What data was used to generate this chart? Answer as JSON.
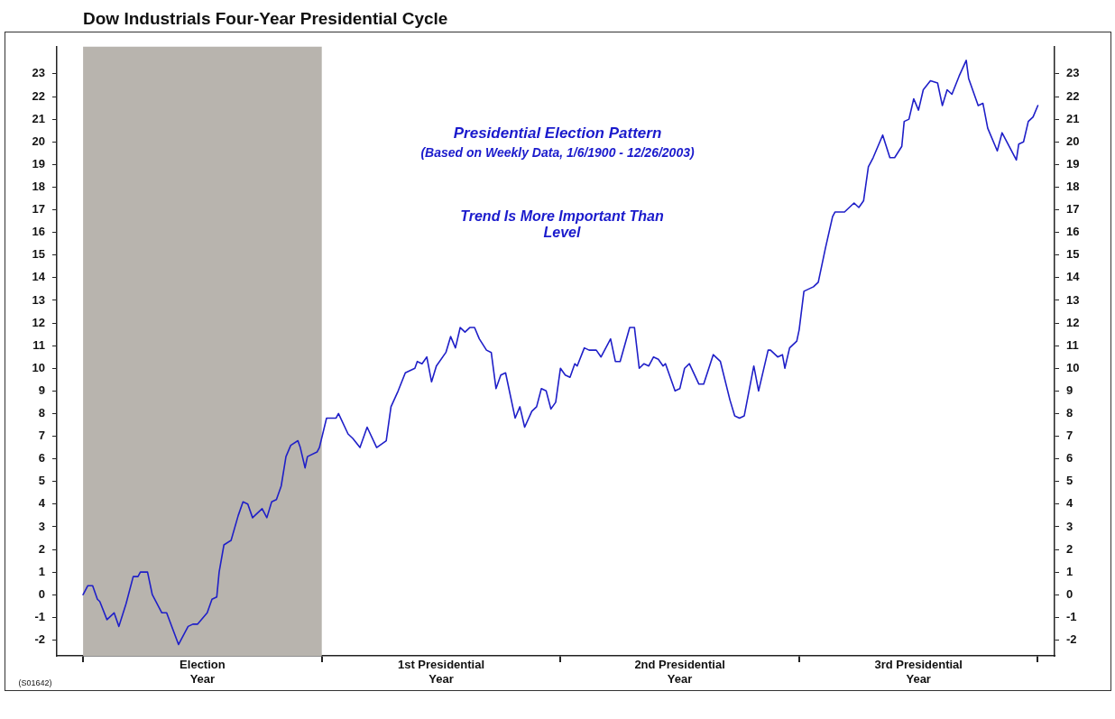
{
  "chart_data": {
    "type": "line",
    "title": "Dow Industrials Four-Year Presidential Cycle",
    "xlim": [
      -0.11,
      4.07
    ],
    "xticks": [
      {
        "value": 0,
        "label": null
      },
      {
        "value": 0.5,
        "label": "Election Year"
      },
      {
        "value": 1,
        "label": null
      },
      {
        "value": 1.5,
        "label": "1st Presidential Year"
      },
      {
        "value": 2,
        "label": null
      },
      {
        "value": 2.5,
        "label": "2nd Presidential Year"
      },
      {
        "value": 3,
        "label": null
      },
      {
        "value": 3.5,
        "label": "3rd Presidential Year"
      },
      {
        "value": 4,
        "label": null
      }
    ],
    "ylim": [
      -2.7,
      24.2
    ],
    "yticks": [
      -2,
      -1,
      0,
      1,
      2,
      3,
      4,
      5,
      6,
      7,
      8,
      9,
      10,
      11,
      12,
      13,
      14,
      15,
      16,
      17,
      18,
      19,
      20,
      21,
      22,
      23
    ],
    "y2lim": [
      -2.7,
      24.2
    ],
    "y2ticks": [
      -2,
      -1,
      0,
      1,
      2,
      3,
      4,
      5,
      6,
      7,
      8,
      9,
      10,
      11,
      12,
      13,
      14,
      15,
      16,
      17,
      18,
      19,
      20,
      21,
      22,
      23
    ],
    "grid": false,
    "legend": false,
    "marker": "none",
    "line_style": "solid",
    "bands": [
      {
        "axis": "x",
        "from": 0,
        "to": 1,
        "color": "#b8b4ae"
      }
    ],
    "annotations": [
      "Presidential Election Pattern",
      "(Based on Weekly Data, 1/6/1900 - 12/26/2003)",
      "Trend Is More Important Than Level",
      "(S01642)"
    ],
    "x": [
      0,
      0.02,
      0.04,
      0.06,
      0.07,
      0.1,
      0.13,
      0.15,
      0.18,
      0.21,
      0.23,
      0.24,
      0.27,
      0.29,
      0.33,
      0.35,
      0.4,
      0.44,
      0.46,
      0.48,
      0.52,
      0.54,
      0.56,
      0.57,
      0.59,
      0.62,
      0.65,
      0.67,
      0.69,
      0.71,
      0.75,
      0.77,
      0.79,
      0.81,
      0.83,
      0.85,
      0.87,
      0.9,
      0.91,
      0.93,
      0.94,
      0.98,
      0.99,
      1.02,
      1.06,
      1.07,
      1.11,
      1.13,
      1.16,
      1.19,
      1.23,
      1.27,
      1.29,
      1.32,
      1.35,
      1.39,
      1.4,
      1.42,
      1.44,
      1.46,
      1.48,
      1.52,
      1.54,
      1.56,
      1.58,
      1.6,
      1.62,
      1.64,
      1.66,
      1.69,
      1.71,
      1.73,
      1.75,
      1.77,
      1.81,
      1.83,
      1.85,
      1.88,
      1.9,
      1.92,
      1.94,
      1.96,
      1.98,
      2,
      2.02,
      2.04,
      2.06,
      2.07,
      2.1,
      2.12,
      2.15,
      2.17,
      2.21,
      2.23,
      2.25,
      2.29,
      2.31,
      2.33,
      2.35,
      2.37,
      2.39,
      2.41,
      2.43,
      2.44,
      2.48,
      2.5,
      2.52,
      2.54,
      2.58,
      2.6,
      2.64,
      2.67,
      2.71,
      2.73,
      2.75,
      2.77,
      2.81,
      2.83,
      2.87,
      2.88,
      2.91,
      2.93,
      2.94,
      2.96,
      2.99,
      3,
      3.02,
      3.06,
      3.08,
      3.11,
      3.14,
      3.15,
      3.19,
      3.23,
      3.25,
      3.27,
      3.29,
      3.31,
      3.35,
      3.38,
      3.4,
      3.43,
      3.44,
      3.46,
      3.48,
      3.5,
      3.52,
      3.55,
      3.58,
      3.6,
      3.62,
      3.64,
      3.67,
      3.7,
      3.71,
      3.75,
      3.77,
      3.79,
      3.83,
      3.85,
      3.91,
      3.92,
      3.94,
      3.96,
      3.98,
      4
    ],
    "series": [
      {
        "color": "#1f1fc8",
        "values": [
          0,
          0.4,
          0.4,
          -0.2,
          -0.3,
          -1.1,
          -0.8,
          -1.4,
          -0.4,
          0.8,
          0.8,
          1,
          1,
          0,
          -0.8,
          -0.8,
          -2.2,
          -1.4,
          -1.3,
          -1.3,
          -0.8,
          -0.2,
          -0.1,
          1,
          2.2,
          2.4,
          3.5,
          4.1,
          4,
          3.4,
          3.8,
          3.4,
          4.1,
          4.2,
          4.8,
          6.1,
          6.6,
          6.8,
          6.5,
          5.6,
          6.1,
          6.3,
          6.5,
          7.8,
          7.8,
          8,
          7.1,
          6.9,
          6.5,
          7.4,
          6.5,
          6.8,
          8.3,
          9,
          9.8,
          10,
          10.3,
          10.2,
          10.5,
          9.4,
          10.1,
          10.7,
          11.4,
          10.9,
          11.8,
          11.6,
          11.8,
          11.8,
          11.3,
          10.8,
          10.7,
          9.1,
          9.7,
          9.8,
          7.8,
          8.3,
          7.4,
          8.1,
          8.3,
          9.1,
          9,
          8.2,
          8.5,
          10,
          9.7,
          9.6,
          10.2,
          10.1,
          10.9,
          10.8,
          10.8,
          10.5,
          11.3,
          10.3,
          10.3,
          11.8,
          11.8,
          10,
          10.2,
          10.1,
          10.5,
          10.4,
          10.1,
          10.2,
          9,
          9.1,
          10,
          10.2,
          9.3,
          9.3,
          10.6,
          10.3,
          8.6,
          7.9,
          7.8,
          7.9,
          10.1,
          9,
          10.8,
          10.8,
          10.5,
          10.6,
          10,
          10.9,
          11.2,
          11.7,
          13.4,
          13.6,
          13.8,
          15.3,
          16.7,
          16.9,
          16.9,
          17.3,
          17.1,
          17.4,
          18.9,
          19.3,
          20.3,
          19.3,
          19.3,
          19.8,
          20.9,
          21,
          21.9,
          21.4,
          22.3,
          22.7,
          22.6,
          21.6,
          22.3,
          22.1,
          22.9,
          23.6,
          22.8,
          21.6,
          21.7,
          20.6,
          19.6,
          20.4,
          19.2,
          19.9,
          20,
          20.9,
          21.1,
          21.6
        ]
      }
    ]
  }
}
